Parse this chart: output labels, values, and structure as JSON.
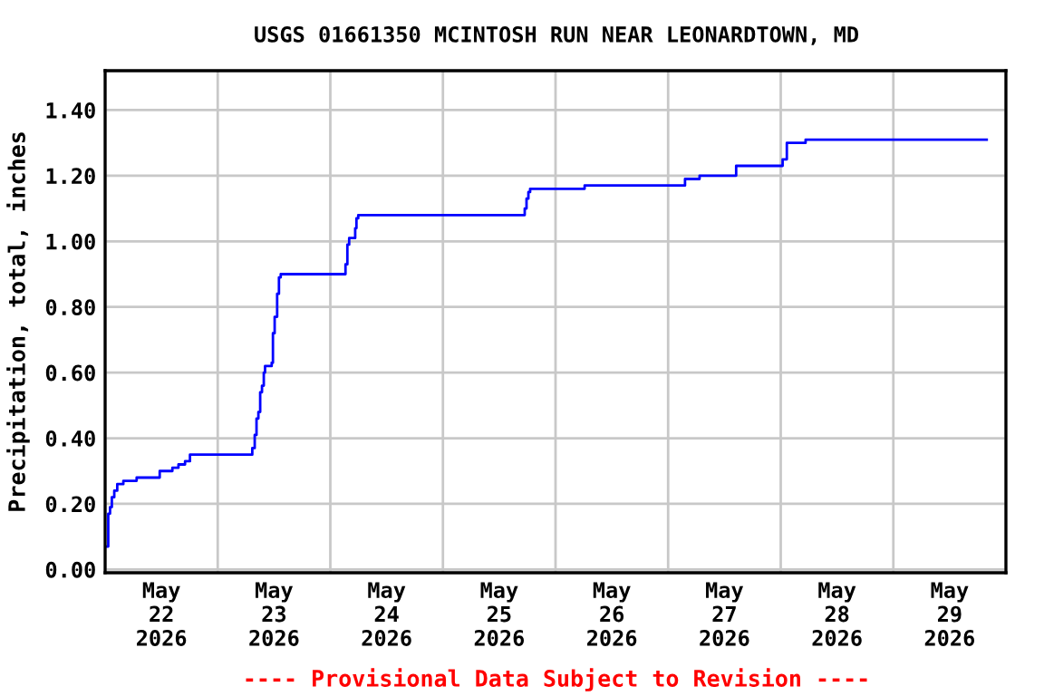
{
  "chart_data": {
    "type": "step",
    "title": "USGS 01661350 MCINTOSH RUN NEAR LEONARDTOWN, MD",
    "ylabel": "Precipitation, total, inches",
    "annotations": [
      "---- Provisional Data Subject to Revision ----"
    ],
    "x": [
      "2026-05-22T00:16",
      "2026-05-22T00:40",
      "2026-05-22T01:03",
      "2026-05-22T01:26",
      "2026-05-22T01:57",
      "2026-05-22T02:35",
      "2026-05-22T03:53",
      "2026-05-22T06:43",
      "2026-05-22T11:38",
      "2026-05-22T14:20",
      "2026-05-22T15:38",
      "2026-05-22T17:02",
      "2026-05-22T18:05",
      "2026-05-23T07:22",
      "2026-05-23T07:53",
      "2026-05-23T08:16",
      "2026-05-23T08:40",
      "2026-05-23T09:03",
      "2026-05-23T09:26",
      "2026-05-23T09:49",
      "2026-05-23T10:05",
      "2026-05-23T11:30",
      "2026-05-23T11:46",
      "2026-05-23T12:08",
      "2026-05-23T12:40",
      "2026-05-23T13:03",
      "2026-05-23T13:26",
      "2026-05-24T03:14",
      "2026-05-24T03:38",
      "2026-05-24T04:01",
      "2026-05-24T05:18",
      "2026-05-24T05:34",
      "2026-05-24T05:57",
      "2026-05-25T17:26",
      "2026-05-25T17:49",
      "2026-05-25T18:13",
      "2026-05-25T18:35",
      "2026-05-26T06:12",
      "2026-05-27T03:36",
      "2026-05-27T06:42",
      "2026-05-27T14:30",
      "2026-05-28T00:24",
      "2026-05-28T01:18",
      "2026-05-28T05:18",
      "2026-05-29T19:54"
    ],
    "series": [
      {
        "color": "#0000ff",
        "values": [
          0.07,
          0.17,
          0.19,
          0.22,
          0.24,
          0.26,
          0.27,
          0.28,
          0.3,
          0.31,
          0.32,
          0.33,
          0.35,
          0.37,
          0.41,
          0.46,
          0.48,
          0.54,
          0.56,
          0.6,
          0.62,
          0.63,
          0.72,
          0.77,
          0.84,
          0.89,
          0.9,
          0.93,
          0.99,
          1.01,
          1.04,
          1.07,
          1.08,
          1.1,
          1.13,
          1.15,
          1.16,
          1.17,
          1.19,
          1.2,
          1.23,
          1.25,
          1.3,
          1.31,
          1.31
        ]
      }
    ],
    "xlim": [
      "2026-05-22",
      "2026-05-30"
    ],
    "xticks": [
      {
        "value": "2026-05-22",
        "label": null
      },
      {
        "value": "2026-05-22T12:00",
        "label": "May\n22\n2026"
      },
      {
        "value": "2026-05-23",
        "label": null
      },
      {
        "value": "2026-05-23T12:00",
        "label": "May\n23\n2026"
      },
      {
        "value": "2026-05-24",
        "label": null
      },
      {
        "value": "2026-05-24T12:00",
        "label": "May\n24\n2026"
      },
      {
        "value": "2026-05-25",
        "label": null
      },
      {
        "value": "2026-05-25T12:00",
        "label": "May\n25\n2026"
      },
      {
        "value": "2026-05-26",
        "label": null
      },
      {
        "value": "2026-05-26T12:00",
        "label": "May\n26\n2026"
      },
      {
        "value": "2026-05-27",
        "label": null
      },
      {
        "value": "2026-05-27T12:00",
        "label": "May\n27\n2026"
      },
      {
        "value": "2026-05-28",
        "label": null
      },
      {
        "value": "2026-05-28T12:00",
        "label": "May\n28\n2026"
      },
      {
        "value": "2026-05-29",
        "label": null
      },
      {
        "value": "2026-05-29T12:00",
        "label": "May\n29\n2026"
      },
      {
        "value": "2026-05-30",
        "label": null
      }
    ],
    "ylim": [
      -0.01,
      1.52
    ],
    "yticks": [
      {
        "value": 0,
        "label": "0.00"
      },
      {
        "value": 0.2,
        "label": "0.20"
      },
      {
        "value": 0.4,
        "label": "0.40"
      },
      {
        "value": 0.6,
        "label": "0.60"
      },
      {
        "value": 0.8,
        "label": "0.80"
      },
      {
        "value": 1.0,
        "label": "1.00"
      },
      {
        "value": 1.2,
        "label": "1.20"
      },
      {
        "value": 1.4,
        "label": "1.40"
      }
    ],
    "grid": true,
    "marker": "none",
    "line_style": "solid"
  }
}
